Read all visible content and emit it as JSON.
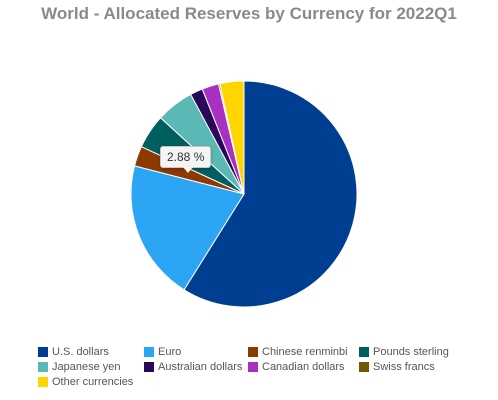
{
  "chart_data": {
    "type": "pie",
    "title": "World - Allocated Reserves by Currency for 2022Q1",
    "categories": [
      "U.S. dollars",
      "Euro",
      "Chinese renminbi",
      "Pounds sterling",
      "Japanese yen",
      "Australian dollars",
      "Canadian dollars",
      "Swiss francs",
      "Other currencies"
    ],
    "values": [
      58.9,
      20.1,
      2.88,
      4.9,
      5.4,
      1.8,
      2.4,
      0.2,
      3.42
    ],
    "colors": [
      "#003e91",
      "#2da5f5",
      "#8c3a00",
      "#005f5f",
      "#5ab9b4",
      "#2a0859",
      "#a732c2",
      "#6e5a00",
      "#ffd500"
    ],
    "tooltip": {
      "category": "Chinese renminbi",
      "label": "2.88 %"
    },
    "legend_position": "bottom"
  }
}
